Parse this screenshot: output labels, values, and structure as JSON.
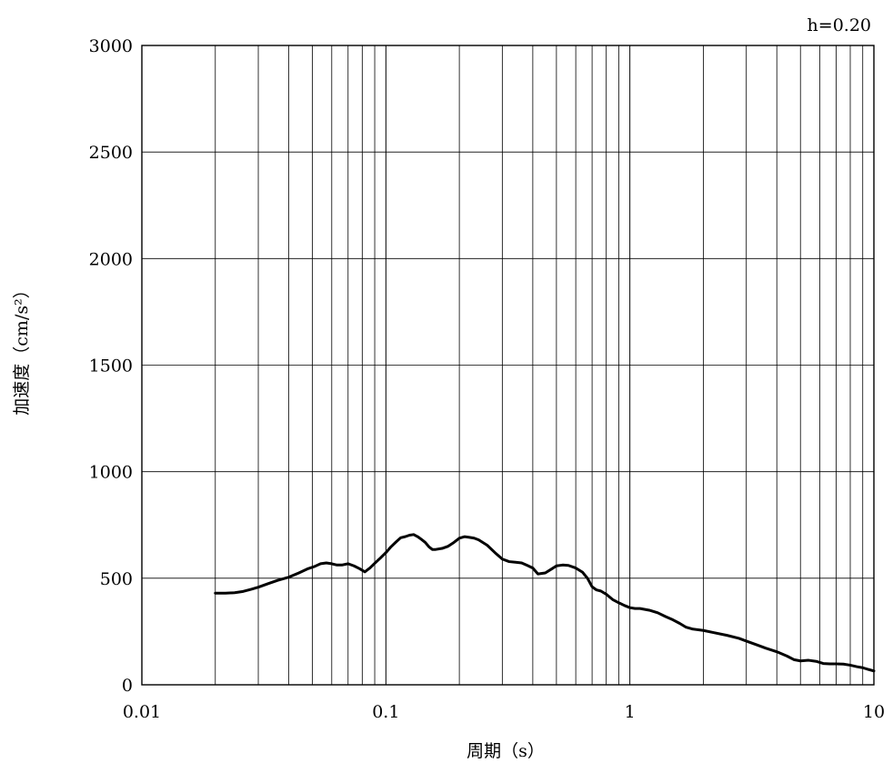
{
  "chart_data": {
    "type": "line",
    "annotation": "h=0.20",
    "xlabel": "周期（s）",
    "ylabel": "加速度（cm/s²）",
    "x_scale": "log",
    "xlim": [
      0.01,
      10
    ],
    "ylim": [
      0,
      3000
    ],
    "x_ticks": [
      0.01,
      0.1,
      1,
      10
    ],
    "x_tick_labels": [
      "0.01",
      "0.1",
      "1",
      "10"
    ],
    "y_ticks": [
      0,
      500,
      1000,
      1500,
      2000,
      2500,
      3000
    ],
    "y_tick_labels": [
      "0",
      "500",
      "1000",
      "1500",
      "2000",
      "2500",
      "3000"
    ],
    "grid": true,
    "series": [
      {
        "points": [
          [
            0.02,
            430
          ],
          [
            0.022,
            430
          ],
          [
            0.024,
            432
          ],
          [
            0.026,
            438
          ],
          [
            0.028,
            448
          ],
          [
            0.03,
            458
          ],
          [
            0.033,
            475
          ],
          [
            0.036,
            490
          ],
          [
            0.04,
            505
          ],
          [
            0.044,
            525
          ],
          [
            0.048,
            545
          ],
          [
            0.051,
            555
          ],
          [
            0.054,
            568
          ],
          [
            0.057,
            572
          ],
          [
            0.06,
            568
          ],
          [
            0.063,
            562
          ],
          [
            0.066,
            562
          ],
          [
            0.07,
            568
          ],
          [
            0.074,
            558
          ],
          [
            0.078,
            545
          ],
          [
            0.082,
            530
          ],
          [
            0.086,
            548
          ],
          [
            0.09,
            570
          ],
          [
            0.095,
            595
          ],
          [
            0.1,
            620
          ],
          [
            0.105,
            648
          ],
          [
            0.11,
            670
          ],
          [
            0.115,
            690
          ],
          [
            0.12,
            695
          ],
          [
            0.125,
            702
          ],
          [
            0.13,
            705
          ],
          [
            0.135,
            695
          ],
          [
            0.14,
            682
          ],
          [
            0.145,
            668
          ],
          [
            0.15,
            648
          ],
          [
            0.155,
            635
          ],
          [
            0.16,
            635
          ],
          [
            0.17,
            640
          ],
          [
            0.18,
            650
          ],
          [
            0.19,
            668
          ],
          [
            0.2,
            688
          ],
          [
            0.21,
            695
          ],
          [
            0.22,
            692
          ],
          [
            0.23,
            688
          ],
          [
            0.24,
            680
          ],
          [
            0.26,
            655
          ],
          [
            0.28,
            620
          ],
          [
            0.3,
            590
          ],
          [
            0.32,
            578
          ],
          [
            0.34,
            575
          ],
          [
            0.36,
            572
          ],
          [
            0.38,
            560
          ],
          [
            0.4,
            548
          ],
          [
            0.42,
            520
          ],
          [
            0.45,
            525
          ],
          [
            0.48,
            545
          ],
          [
            0.5,
            558
          ],
          [
            0.53,
            562
          ],
          [
            0.56,
            560
          ],
          [
            0.6,
            548
          ],
          [
            0.64,
            528
          ],
          [
            0.67,
            500
          ],
          [
            0.7,
            460
          ],
          [
            0.73,
            445
          ],
          [
            0.76,
            440
          ],
          [
            0.8,
            425
          ],
          [
            0.85,
            400
          ],
          [
            0.9,
            385
          ],
          [
            0.95,
            372
          ],
          [
            1.0,
            362
          ],
          [
            1.05,
            358
          ],
          [
            1.1,
            358
          ],
          [
            1.2,
            350
          ],
          [
            1.3,
            338
          ],
          [
            1.4,
            320
          ],
          [
            1.5,
            305
          ],
          [
            1.6,
            288
          ],
          [
            1.7,
            270
          ],
          [
            1.8,
            262
          ],
          [
            2.0,
            255
          ],
          [
            2.2,
            245
          ],
          [
            2.5,
            232
          ],
          [
            2.8,
            218
          ],
          [
            3.0,
            205
          ],
          [
            3.3,
            188
          ],
          [
            3.6,
            172
          ],
          [
            4.0,
            155
          ],
          [
            4.4,
            135
          ],
          [
            4.7,
            118
          ],
          [
            5.0,
            112
          ],
          [
            5.4,
            115
          ],
          [
            5.8,
            110
          ],
          [
            6.2,
            100
          ],
          [
            6.6,
            98
          ],
          [
            7.0,
            98
          ],
          [
            7.5,
            97
          ],
          [
            8.0,
            92
          ],
          [
            8.5,
            85
          ],
          [
            9.0,
            80
          ],
          [
            9.5,
            72
          ],
          [
            10.0,
            65
          ]
        ],
        "color": "#000000"
      }
    ]
  }
}
